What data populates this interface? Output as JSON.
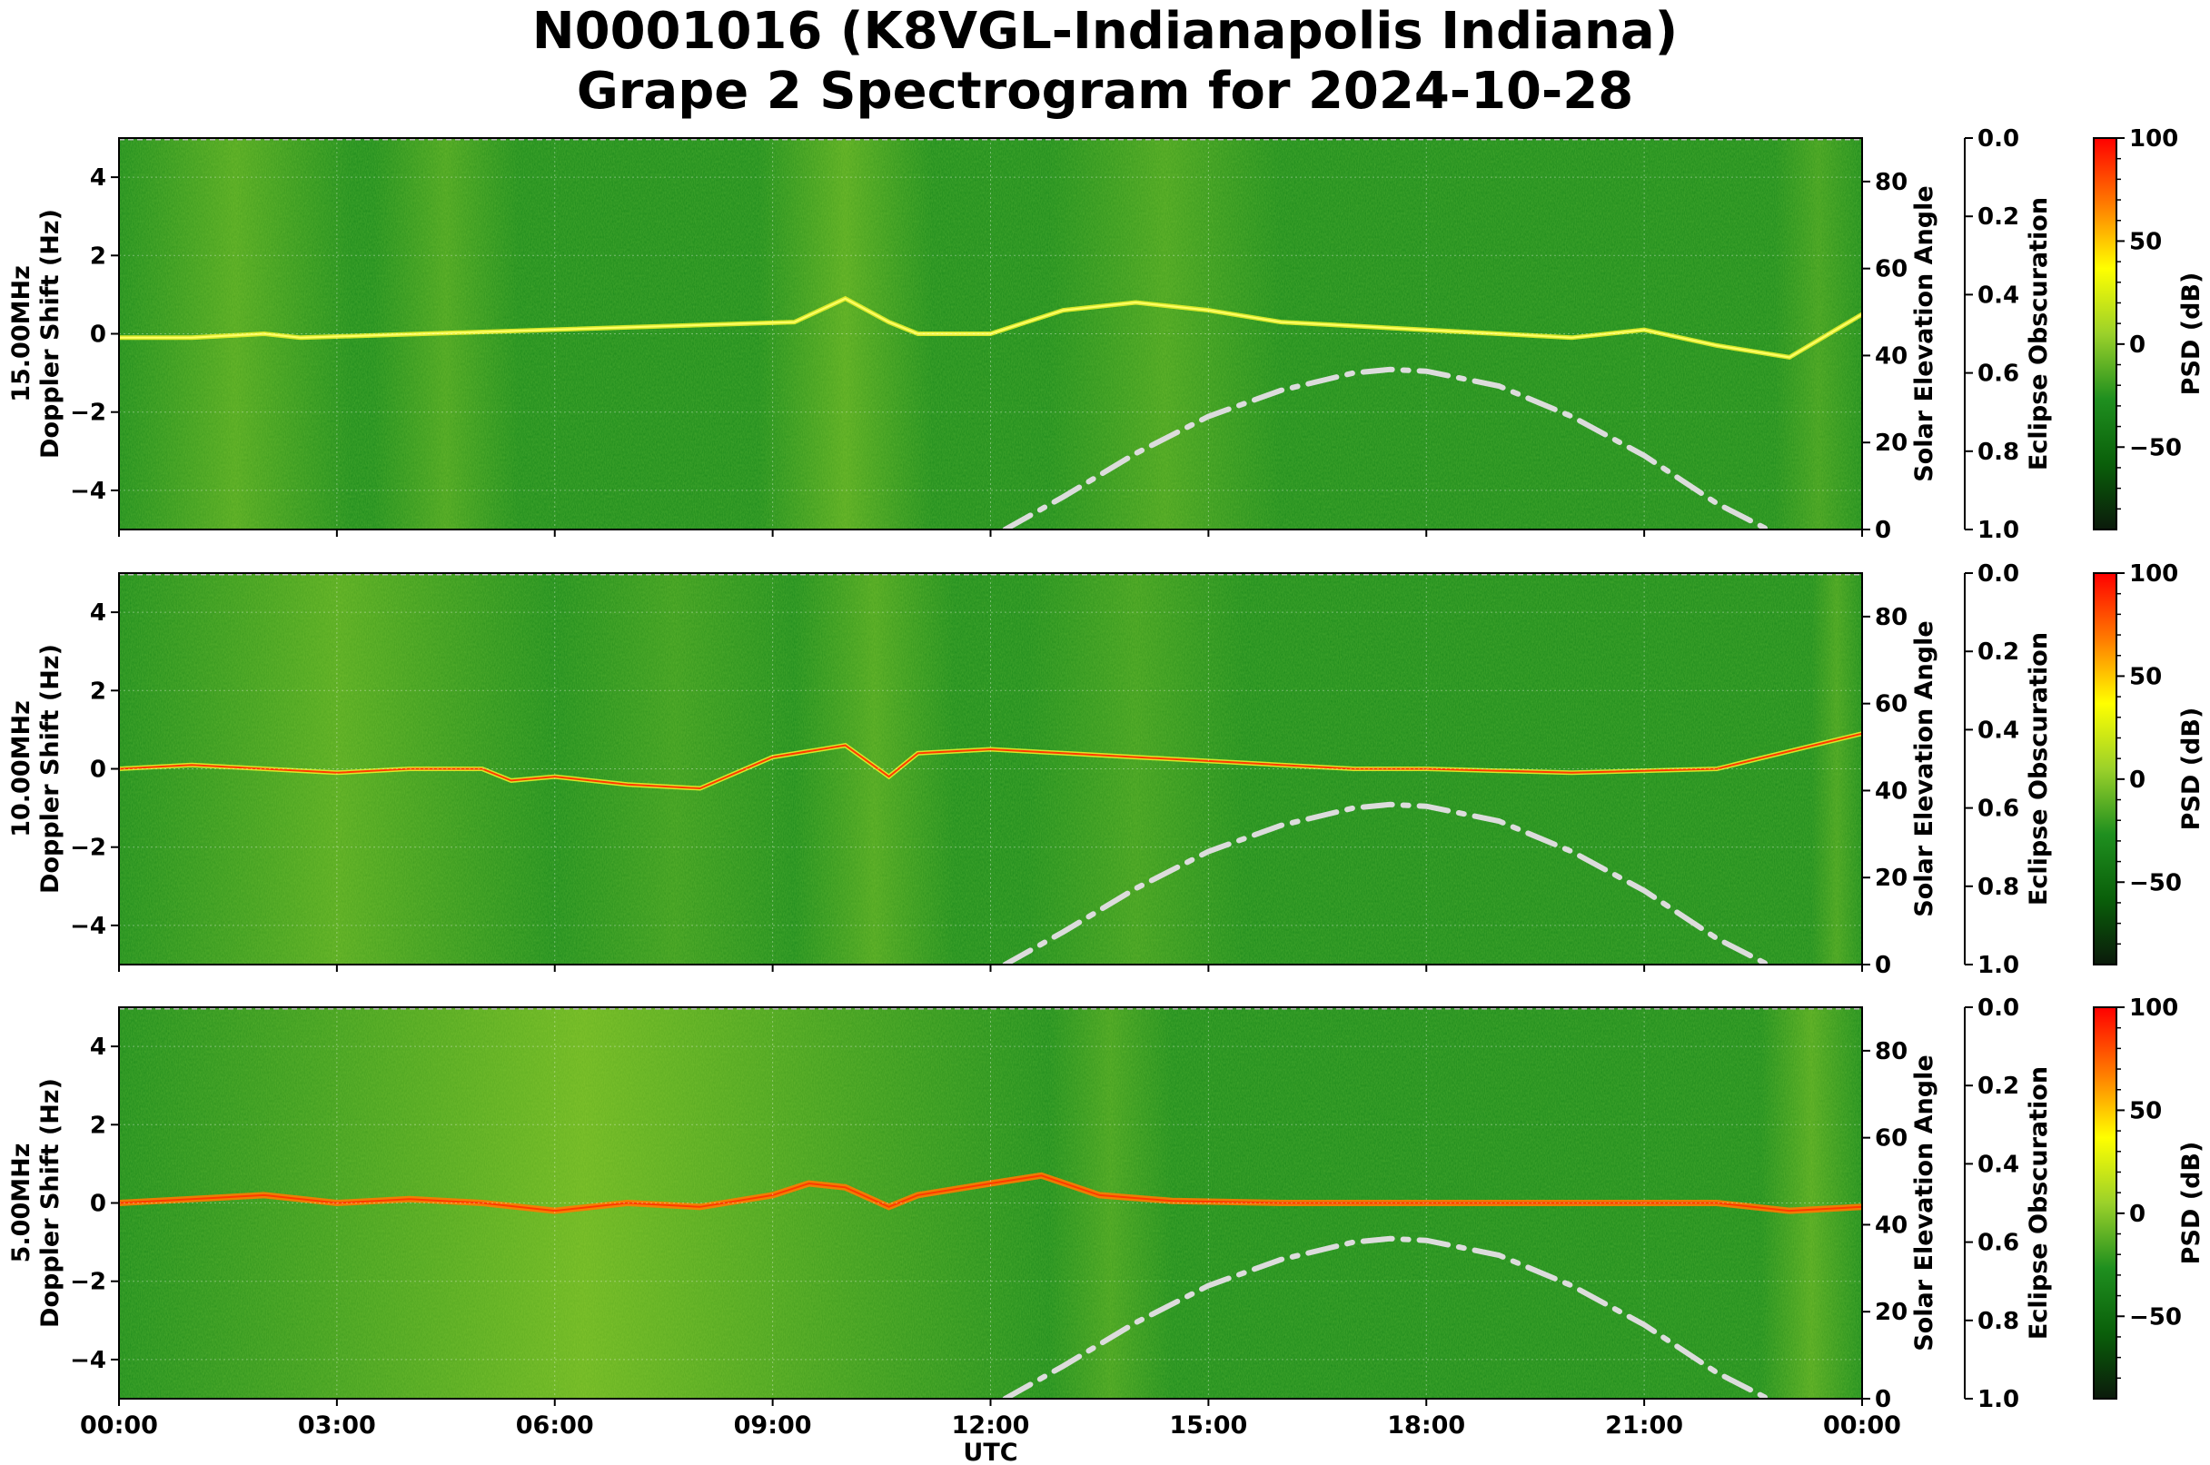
{
  "title_line1": "N0001016 (K8VGL-Indianapolis Indiana)",
  "title_line2": "Grape 2 Spectrogram for 2024-10-28",
  "chart_data": {
    "type": "heatmap",
    "xlabel": "UTC",
    "x_ticks": [
      "00:00",
      "03:00",
      "06:00",
      "09:00",
      "12:00",
      "15:00",
      "18:00",
      "21:00",
      "00:00"
    ],
    "x_range_hours": [
      0,
      24
    ],
    "ylim": [
      -5,
      5
    ],
    "y_ticks": [
      4,
      2,
      0,
      -2,
      -4
    ],
    "right_axis": {
      "label": "Solar Elevation Angle",
      "range": [
        0,
        90
      ],
      "ticks": [
        80,
        60,
        40,
        20,
        0
      ]
    },
    "eclipse_axis": {
      "label": "Eclipse Obscuration",
      "range": [
        0.0,
        1.0
      ],
      "ticks": [
        "0.0",
        "0.2",
        "0.4",
        "0.6",
        "0.8",
        "1.0"
      ]
    },
    "colorbar": {
      "label": "PSD (dB)",
      "range": [
        -90,
        100
      ],
      "ticks": [
        100,
        50,
        0,
        -50
      ],
      "tick_labels": [
        "100",
        "50",
        "0",
        "−50"
      ],
      "colors": [
        "#0b1a0b",
        "#0a5f0a",
        "#1f8f1f",
        "#9bd12a",
        "#ffff00",
        "#ff7a00",
        "#ff0000"
      ]
    },
    "solar_elevation_curve": {
      "style": "dash-dot",
      "color": "#dcdcdc",
      "hours": [
        12.2,
        13,
        14,
        15,
        16,
        17,
        17.5,
        18,
        19,
        20,
        21,
        22,
        22.7
      ],
      "elevation_deg": [
        0,
        7.5,
        17.5,
        26,
        32,
        36,
        36.8,
        36.4,
        33,
        26,
        17,
        6,
        0
      ]
    },
    "series": [
      {
        "name": "15.00MHz",
        "ylabel_line1": "15.00MHz",
        "ylabel_line2": "Doppler Shift (Hz)",
        "carrier_trace_hours": [
          0,
          1,
          2,
          2.5,
          9.3,
          10,
          10.6,
          11,
          12,
          13,
          14,
          15,
          16,
          17,
          18,
          19,
          20,
          21,
          22,
          23,
          24
        ],
        "carrier_trace_hz": [
          -0.1,
          -0.1,
          0.0,
          -0.1,
          0.3,
          0.9,
          0.3,
          0.0,
          0.0,
          0.6,
          0.8,
          0.6,
          0.3,
          0.2,
          0.1,
          0.0,
          -0.1,
          0.1,
          -0.3,
          -0.6,
          0.5
        ]
      },
      {
        "name": "10.00MHz",
        "ylabel_line1": "10.00MHz",
        "ylabel_line2": "Doppler Shift (Hz)",
        "carrier_trace_hours": [
          0,
          1,
          2,
          3,
          4,
          5,
          5.4,
          6,
          7,
          8,
          9,
          10,
          10.6,
          11,
          12,
          13,
          14,
          15,
          16,
          17,
          18,
          20,
          22,
          24
        ],
        "carrier_trace_hz": [
          0.0,
          0.1,
          0.0,
          -0.1,
          0.0,
          0.0,
          -0.3,
          -0.2,
          -0.4,
          -0.5,
          0.3,
          0.6,
          -0.2,
          0.4,
          0.5,
          0.4,
          0.3,
          0.2,
          0.1,
          0.0,
          0.0,
          -0.1,
          0.0,
          0.9
        ]
      },
      {
        "name": "5.00MHz",
        "ylabel_line1": "5.00MHz",
        "ylabel_line2": "Doppler Shift (Hz)",
        "carrier_trace_hours": [
          0,
          1,
          2,
          3,
          4,
          5,
          6,
          7,
          8,
          9,
          9.5,
          10,
          10.6,
          11,
          12,
          12.7,
          13.5,
          14.5,
          16,
          18,
          20,
          22,
          23,
          24
        ],
        "carrier_trace_hz": [
          0.0,
          0.1,
          0.2,
          0.0,
          0.1,
          0.0,
          -0.2,
          0.0,
          -0.1,
          0.2,
          0.5,
          0.4,
          -0.1,
          0.2,
          0.5,
          0.7,
          0.2,
          0.05,
          0.0,
          0.0,
          0.0,
          0.0,
          -0.2,
          -0.1
        ]
      }
    ]
  }
}
